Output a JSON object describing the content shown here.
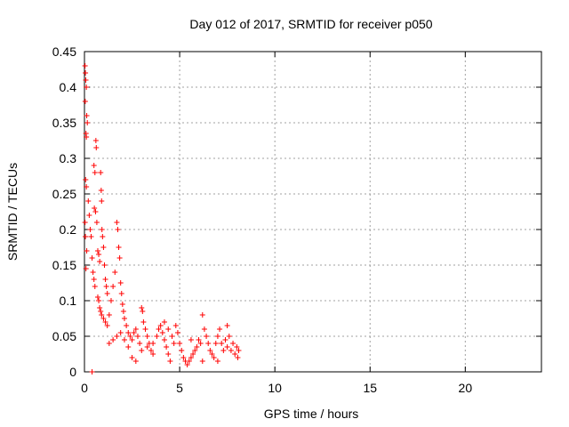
{
  "chart_data": {
    "type": "scatter",
    "title": "Day 012 of 2017, SRMTID for receiver p050",
    "xlabel": "GPS time / hours",
    "ylabel": "SRMTID / TECUs",
    "xlim": [
      0,
      24
    ],
    "ylim": [
      0,
      0.45
    ],
    "x_ticks": [
      0,
      5,
      10,
      15,
      20
    ],
    "x_tick_labels": [
      "0",
      "5",
      "10",
      "15",
      "20"
    ],
    "y_ticks": [
      0,
      0.05,
      0.1,
      0.15,
      0.2,
      0.25,
      0.3,
      0.35,
      0.4,
      0.45
    ],
    "y_tick_labels": [
      "0",
      "0.05",
      "0.1",
      "0.15",
      "0.2",
      "0.25",
      "0.3",
      "0.35",
      "0.4",
      "0.45"
    ],
    "grid": true,
    "marker": "plus",
    "color": "#ff0000",
    "series": [
      {
        "name": "SRMTID",
        "points": [
          [
            0.03,
            0.43
          ],
          [
            0.05,
            0.42
          ],
          [
            0.07,
            0.41
          ],
          [
            0.1,
            0.4
          ],
          [
            0.04,
            0.38
          ],
          [
            0.12,
            0.36
          ],
          [
            0.15,
            0.35
          ],
          [
            0.08,
            0.335
          ],
          [
            0.1,
            0.33
          ],
          [
            0.06,
            0.27
          ],
          [
            0.1,
            0.26
          ],
          [
            0.03,
            0.21
          ],
          [
            0.05,
            0.19
          ],
          [
            0.12,
            0.17
          ],
          [
            0.08,
            0.145
          ],
          [
            0.2,
            0.24
          ],
          [
            0.25,
            0.22
          ],
          [
            0.3,
            0.2
          ],
          [
            0.35,
            0.19
          ],
          [
            0.4,
            0.16
          ],
          [
            0.45,
            0.14
          ],
          [
            0.5,
            0.13
          ],
          [
            0.55,
            0.12
          ],
          [
            0.6,
            0.325
          ],
          [
            0.62,
            0.315
          ],
          [
            0.5,
            0.29
          ],
          [
            0.55,
            0.28
          ],
          [
            0.52,
            0.23
          ],
          [
            0.58,
            0.225
          ],
          [
            0.65,
            0.21
          ],
          [
            0.7,
            0.17
          ],
          [
            0.75,
            0.165
          ],
          [
            0.8,
            0.155
          ],
          [
            0.85,
            0.28
          ],
          [
            0.88,
            0.255
          ],
          [
            0.9,
            0.24
          ],
          [
            0.92,
            0.2
          ],
          [
            0.95,
            0.19
          ],
          [
            1.0,
            0.175
          ],
          [
            1.05,
            0.15
          ],
          [
            1.1,
            0.13
          ],
          [
            1.15,
            0.12
          ],
          [
            1.2,
            0.11
          ],
          [
            0.7,
            0.105
          ],
          [
            0.75,
            0.1
          ],
          [
            0.8,
            0.09
          ],
          [
            0.85,
            0.085
          ],
          [
            0.9,
            0.08
          ],
          [
            1.0,
            0.075
          ],
          [
            1.1,
            0.07
          ],
          [
            1.2,
            0.065
          ],
          [
            1.3,
            0.08
          ],
          [
            1.4,
            0.1
          ],
          [
            1.5,
            0.12
          ],
          [
            1.6,
            0.14
          ],
          [
            1.7,
            0.21
          ],
          [
            1.75,
            0.2
          ],
          [
            1.8,
            0.175
          ],
          [
            1.85,
            0.16
          ],
          [
            1.9,
            0.125
          ],
          [
            1.95,
            0.11
          ],
          [
            2.0,
            0.095
          ],
          [
            2.05,
            0.085
          ],
          [
            2.1,
            0.075
          ],
          [
            2.2,
            0.065
          ],
          [
            2.3,
            0.055
          ],
          [
            2.4,
            0.05
          ],
          [
            1.3,
            0.04
          ],
          [
            1.5,
            0.045
          ],
          [
            1.7,
            0.05
          ],
          [
            1.9,
            0.055
          ],
          [
            2.1,
            0.045
          ],
          [
            2.3,
            0.035
          ],
          [
            2.5,
            0.045
          ],
          [
            2.6,
            0.055
          ],
          [
            2.7,
            0.06
          ],
          [
            2.8,
            0.05
          ],
          [
            2.9,
            0.04
          ],
          [
            3.0,
            0.09
          ],
          [
            3.05,
            0.085
          ],
          [
            3.1,
            0.07
          ],
          [
            3.2,
            0.06
          ],
          [
            3.3,
            0.05
          ],
          [
            3.4,
            0.04
          ],
          [
            3.5,
            0.03
          ],
          [
            3.6,
            0.025
          ],
          [
            2.5,
            0.02
          ],
          [
            2.7,
            0.015
          ],
          [
            3.0,
            0.03
          ],
          [
            3.3,
            0.035
          ],
          [
            3.6,
            0.04
          ],
          [
            3.8,
            0.05
          ],
          [
            3.9,
            0.06
          ],
          [
            4.0,
            0.065
          ],
          [
            4.1,
            0.055
          ],
          [
            4.2,
            0.045
          ],
          [
            4.3,
            0.035
          ],
          [
            4.4,
            0.025
          ],
          [
            4.5,
            0.015
          ],
          [
            4.2,
            0.07
          ],
          [
            4.4,
            0.06
          ],
          [
            4.6,
            0.05
          ],
          [
            4.7,
            0.04
          ],
          [
            4.8,
            0.065
          ],
          [
            4.9,
            0.055
          ],
          [
            5.0,
            0.04
          ],
          [
            5.1,
            0.03
          ],
          [
            5.2,
            0.02
          ],
          [
            5.3,
            0.015
          ],
          [
            5.4,
            0.01
          ],
          [
            5.5,
            0.015
          ],
          [
            5.6,
            0.02
          ],
          [
            5.7,
            0.025
          ],
          [
            5.8,
            0.03
          ],
          [
            5.9,
            0.035
          ],
          [
            6.0,
            0.045
          ],
          [
            6.1,
            0.04
          ],
          [
            6.2,
            0.08
          ],
          [
            6.3,
            0.06
          ],
          [
            6.4,
            0.05
          ],
          [
            6.5,
            0.04
          ],
          [
            6.6,
            0.03
          ],
          [
            6.7,
            0.025
          ],
          [
            6.8,
            0.02
          ],
          [
            6.9,
            0.04
          ],
          [
            7.0,
            0.05
          ],
          [
            7.1,
            0.06
          ],
          [
            7.2,
            0.04
          ],
          [
            7.3,
            0.03
          ],
          [
            7.4,
            0.045
          ],
          [
            7.5,
            0.035
          ],
          [
            7.6,
            0.05
          ],
          [
            7.7,
            0.03
          ],
          [
            7.8,
            0.04
          ],
          [
            7.9,
            0.025
          ],
          [
            8.0,
            0.035
          ],
          [
            8.05,
            0.02
          ],
          [
            8.1,
            0.03
          ],
          [
            5.6,
            0.045
          ],
          [
            6.2,
            0.015
          ],
          [
            7.0,
            0.015
          ],
          [
            7.5,
            0.065
          ],
          [
            0.4,
            0.0
          ]
        ]
      }
    ]
  }
}
